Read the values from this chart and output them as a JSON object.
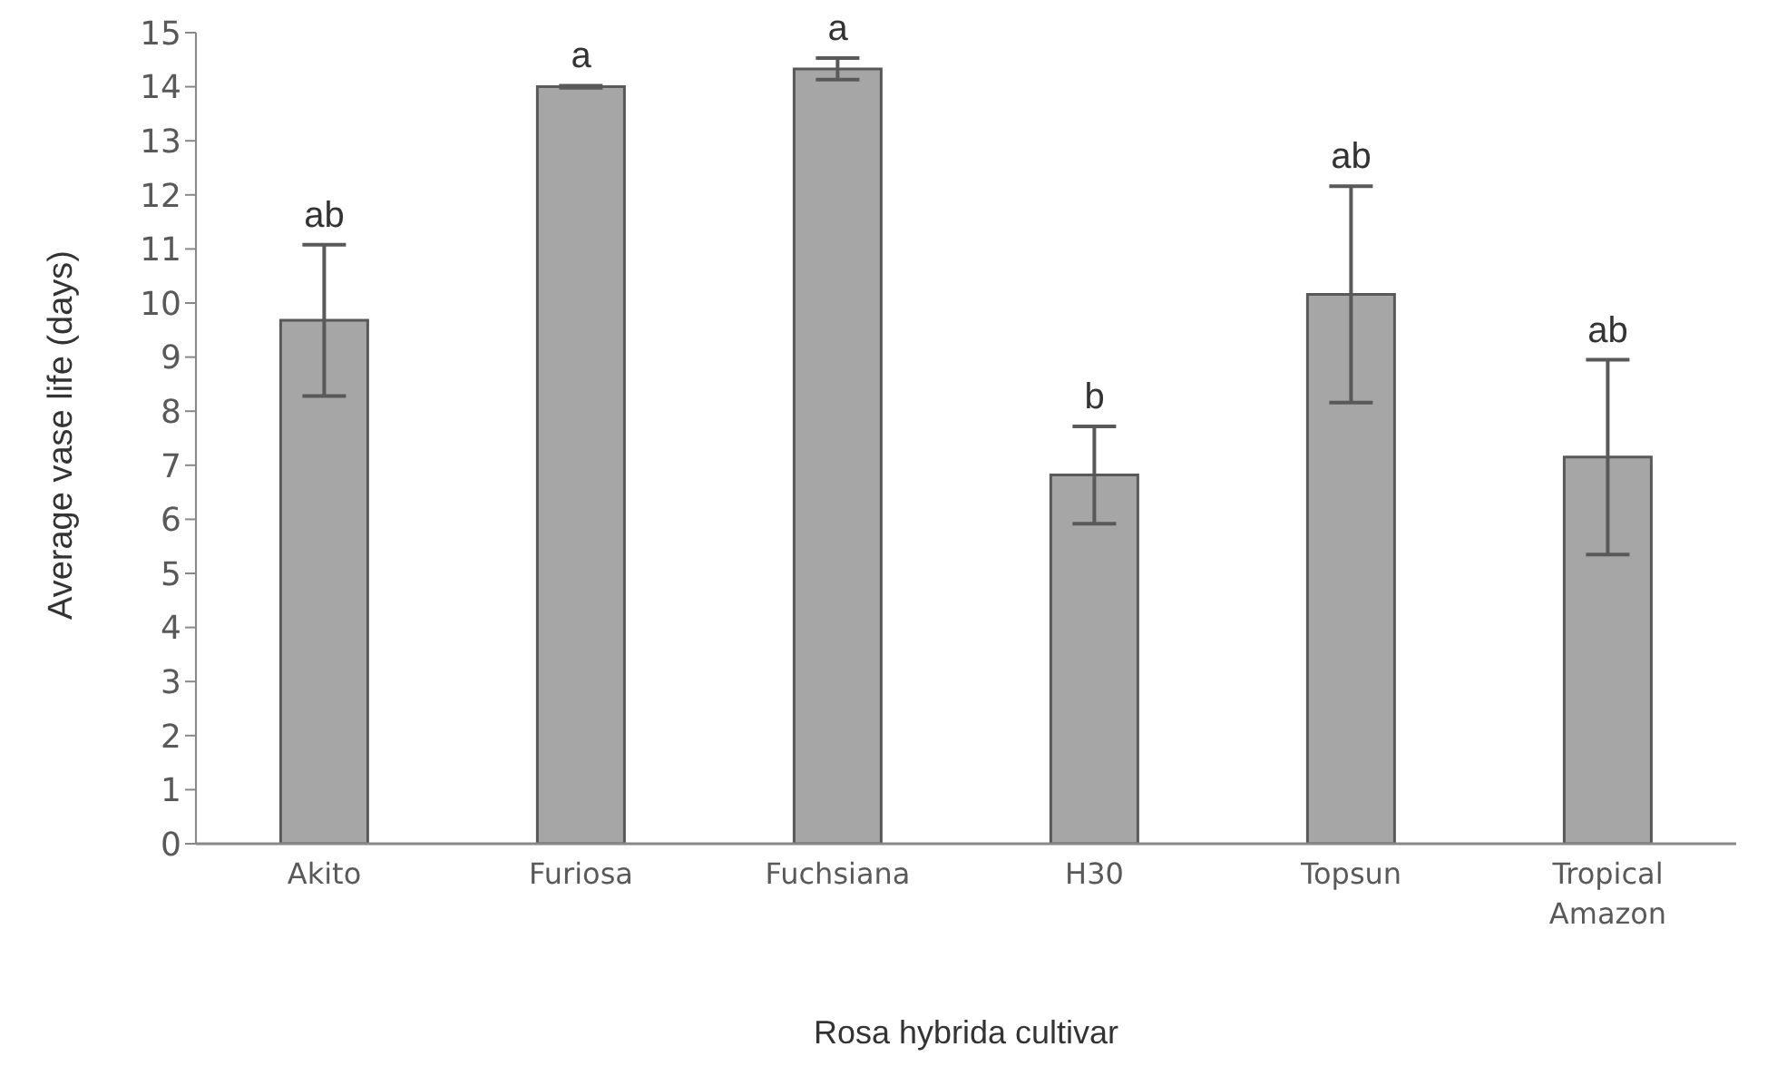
{
  "chart_data": {
    "type": "bar",
    "ylabel": "Average vase life (days)",
    "xlabel": "Rosa hybrida cultivar",
    "categories": [
      "Akito",
      "Furiosa",
      "Fuchsiana",
      "H30",
      "Topsun",
      "Tropical Amazon"
    ],
    "values": [
      9.68,
      14.0,
      14.33,
      6.82,
      10.16,
      7.15
    ],
    "errors": [
      1.4,
      0.02,
      0.2,
      0.9,
      2.0,
      1.8
    ],
    "color": "#a6a6a6",
    "ylim": [
      0,
      15
    ],
    "yticks": [
      0,
      1,
      2,
      3,
      4,
      5,
      6,
      7,
      8,
      9,
      10,
      11,
      12,
      13,
      14,
      15
    ],
    "grid": false,
    "legend": false,
    "annotations": [
      {
        "text": "ab",
        "x": "Akito",
        "y": 11.08
      },
      {
        "text": "a",
        "x": "Furiosa",
        "y": 14.02
      },
      {
        "text": "a",
        "x": "Fuchsiana",
        "y": 14.53
      },
      {
        "text": "b",
        "x": "H30",
        "y": 7.72
      },
      {
        "text": "ab",
        "x": "Topsun",
        "y": 12.16
      },
      {
        "text": "ab",
        "x": "Tropical Amazon",
        "y": 8.95
      }
    ]
  }
}
